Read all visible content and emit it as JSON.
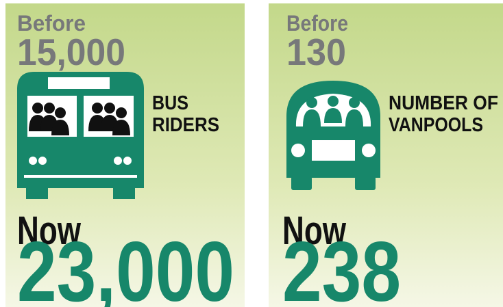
{
  "panels": [
    {
      "before_label": "Before",
      "before_value": "15,000",
      "caption": [
        "BUS",
        "RIDERS"
      ],
      "now_label": "Now",
      "now_value": "23,000"
    },
    {
      "before_label": "Before",
      "before_value": "130",
      "caption": [
        "NUMBER OF",
        "VANPOOLS"
      ],
      "now_label": "Now",
      "now_value": "238"
    }
  ]
}
